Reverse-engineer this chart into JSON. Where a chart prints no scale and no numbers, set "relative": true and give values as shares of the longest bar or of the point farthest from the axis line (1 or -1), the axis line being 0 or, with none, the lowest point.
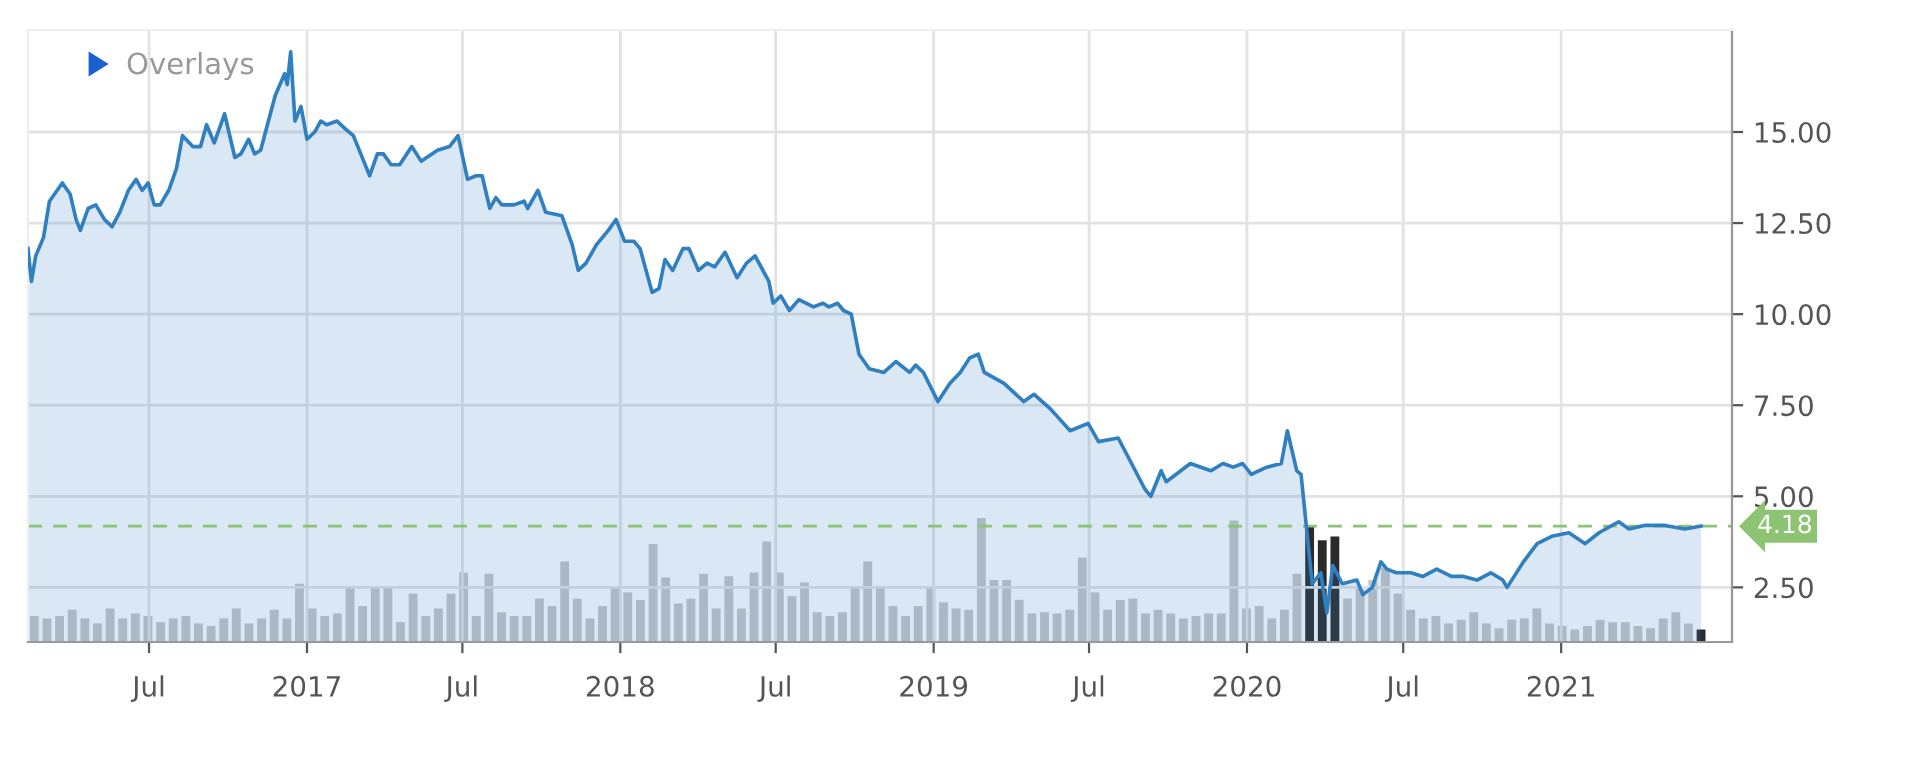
{
  "chart_data": [
    {
      "type": "area",
      "xlim": [
        "2016-02-11",
        "2021-07-19"
      ],
      "ylim": [
        1.0,
        17.8
      ],
      "xticks": [
        {
          "value": "2016-07-01",
          "label": "Jul"
        },
        {
          "value": "2017-01-01",
          "label": "2017"
        },
        {
          "value": "2017-07-01",
          "label": "Jul"
        },
        {
          "value": "2018-01-01",
          "label": "2018"
        },
        {
          "value": "2018-07-01",
          "label": "Jul"
        },
        {
          "value": "2019-01-01",
          "label": "2019"
        },
        {
          "value": "2019-07-01",
          "label": "Jul"
        },
        {
          "value": "2020-01-01",
          "label": "2020"
        },
        {
          "value": "2020-07-01",
          "label": "Jul"
        },
        {
          "value": "2021-01-01",
          "label": "2021"
        }
      ],
      "yticks": [
        {
          "value": 2.5,
          "label": "2.50"
        },
        {
          "value": 5,
          "label": "5.00"
        },
        {
          "value": 7.5,
          "label": "7.50"
        },
        {
          "value": 10,
          "label": "10.00"
        },
        {
          "value": 12.5,
          "label": "12.50"
        },
        {
          "value": 15,
          "label": "15.00"
        }
      ],
      "grid": true,
      "annotations": [
        "Overlays"
      ],
      "ref_lines": [
        {
          "axis": "y",
          "value": 4.18,
          "label": "4.18",
          "color": "#8cc474",
          "line_style": "dashed"
        }
      ],
      "series": [
        {
          "color": "#2f7fc1",
          "x": [
            "2016-02-11",
            "2016-02-15",
            "2016-02-20",
            "2016-02-29",
            "2016-03-07",
            "2016-03-22",
            "2016-03-31",
            "2016-04-07",
            "2016-04-12",
            "2016-04-21",
            "2016-04-30",
            "2016-05-10",
            "2016-05-19",
            "2016-05-28",
            "2016-06-07",
            "2016-06-16",
            "2016-06-23",
            "2016-06-30",
            "2016-07-07",
            "2016-07-14",
            "2016-07-24",
            "2016-08-02",
            "2016-08-09",
            "2016-08-21",
            "2016-08-30",
            "2016-09-06",
            "2016-09-15",
            "2016-09-27",
            "2016-10-09",
            "2016-10-16",
            "2016-10-25",
            "2016-11-01",
            "2016-11-08",
            "2016-11-25",
            "2016-12-06",
            "2016-12-09",
            "2016-12-13",
            "2016-12-18",
            "2016-12-25",
            "2017-01-01",
            "2017-01-10",
            "2017-01-17",
            "2017-01-24",
            "2017-02-05",
            "2017-02-14",
            "2017-02-24",
            "2017-03-15",
            "2017-03-24",
            "2017-03-31",
            "2017-04-09",
            "2017-04-19",
            "2017-05-03",
            "2017-05-14",
            "2017-06-02",
            "2017-06-16",
            "2017-06-26",
            "2017-07-07",
            "2017-07-17",
            "2017-07-24",
            "2017-08-02",
            "2017-08-09",
            "2017-08-16",
            "2017-08-30",
            "2017-09-11",
            "2017-09-15",
            "2017-09-27",
            "2017-10-06",
            "2017-10-25",
            "2017-11-06",
            "2017-11-13",
            "2017-11-22",
            "2017-12-04",
            "2017-12-18",
            "2017-12-27",
            "2018-01-06",
            "2018-01-17",
            "2018-01-24",
            "2018-02-07",
            "2018-02-15",
            "2018-02-22",
            "2018-03-03",
            "2018-03-15",
            "2018-03-22",
            "2018-04-02",
            "2018-04-12",
            "2018-04-21",
            "2018-05-03",
            "2018-05-17",
            "2018-05-28",
            "2018-06-07",
            "2018-06-23",
            "2018-06-28",
            "2018-07-07",
            "2018-07-17",
            "2018-07-28",
            "2018-08-14",
            "2018-08-25",
            "2018-09-01",
            "2018-09-11",
            "2018-09-18",
            "2018-09-27",
            "2018-10-06",
            "2018-10-18",
            "2018-11-04",
            "2018-11-18",
            "2018-12-04",
            "2018-12-11",
            "2018-12-20",
            "2019-01-06",
            "2019-01-20",
            "2019-02-01",
            "2019-02-12",
            "2019-02-22",
            "2019-03-01",
            "2019-03-24",
            "2019-04-16",
            "2019-04-28",
            "2019-05-17",
            "2019-06-09",
            "2019-06-30",
            "2019-07-12",
            "2019-08-04",
            "2019-09-04",
            "2019-09-11",
            "2019-09-23",
            "2019-09-29",
            "2019-10-27",
            "2019-11-20",
            "2019-12-04",
            "2019-12-16",
            "2019-12-27",
            "2020-01-06",
            "2020-01-24",
            "2020-02-10",
            "2020-02-17",
            "2020-02-28",
            "2020-03-04",
            "2020-03-17",
            "2020-03-27",
            "2020-04-03",
            "2020-04-10",
            "2020-04-21",
            "2020-05-08",
            "2020-05-15",
            "2020-05-26",
            "2020-06-05",
            "2020-06-12",
            "2020-06-23",
            "2020-07-10",
            "2020-07-24",
            "2020-08-09",
            "2020-08-26",
            "2020-09-09",
            "2020-09-25",
            "2020-10-11",
            "2020-10-25",
            "2020-10-30",
            "2020-11-18",
            "2020-12-04",
            "2020-12-21",
            "2021-01-10",
            "2021-01-29",
            "2021-02-14",
            "2021-03-09",
            "2021-03-21",
            "2021-04-08",
            "2021-05-02",
            "2021-05-25",
            "2021-06-13"
          ],
          "values": [
            11.8,
            10.9,
            11.6,
            12.1,
            13.1,
            13.6,
            13.3,
            12.6,
            12.3,
            12.9,
            13.0,
            12.6,
            12.4,
            12.8,
            13.4,
            13.7,
            13.4,
            13.6,
            13.0,
            13.0,
            13.4,
            14.0,
            14.9,
            14.6,
            14.6,
            15.2,
            14.7,
            15.5,
            14.3,
            14.4,
            14.8,
            14.4,
            14.5,
            16.0,
            16.6,
            16.3,
            17.2,
            15.3,
            15.7,
            14.8,
            15.0,
            15.3,
            15.2,
            15.3,
            15.1,
            14.9,
            13.8,
            14.4,
            14.4,
            14.1,
            14.1,
            14.6,
            14.2,
            14.5,
            14.6,
            14.9,
            13.7,
            13.8,
            13.8,
            12.9,
            13.2,
            13.0,
            13.0,
            13.1,
            12.9,
            13.4,
            12.8,
            12.7,
            11.9,
            11.2,
            11.4,
            11.9,
            12.3,
            12.6,
            12.0,
            12.0,
            11.8,
            10.6,
            10.7,
            11.5,
            11.2,
            11.8,
            11.8,
            11.2,
            11.4,
            11.3,
            11.7,
            11.0,
            11.4,
            11.6,
            10.9,
            10.3,
            10.5,
            10.1,
            10.4,
            10.2,
            10.3,
            10.2,
            10.3,
            10.1,
            10.0,
            8.9,
            8.5,
            8.4,
            8.7,
            8.4,
            8.6,
            8.4,
            7.6,
            8.1,
            8.4,
            8.8,
            8.9,
            8.4,
            8.1,
            7.6,
            7.8,
            7.4,
            6.8,
            7.0,
            6.5,
            6.6,
            5.2,
            5.0,
            5.7,
            5.4,
            5.9,
            5.7,
            5.9,
            5.8,
            5.9,
            5.6,
            5.8,
            5.9,
            6.8,
            5.7,
            5.6,
            2.6,
            2.9,
            1.8,
            3.1,
            2.6,
            2.7,
            2.3,
            2.5,
            3.2,
            3.0,
            2.9,
            2.9,
            2.8,
            3.0,
            2.8,
            2.8,
            2.7,
            2.9,
            2.7,
            2.5,
            3.2,
            3.7,
            3.9,
            4.0,
            3.7,
            4.0,
            4.3,
            4.1,
            4.2,
            4.2,
            4.1,
            4.18
          ]
        }
      ]
    },
    {
      "type": "bar",
      "relative": true,
      "categories": [
        null,
        null,
        null,
        null,
        null,
        null,
        null,
        null,
        null,
        null,
        null,
        null,
        null,
        null,
        null,
        null,
        null,
        null,
        null,
        null,
        null,
        null,
        null,
        null,
        null,
        null,
        null,
        null,
        null,
        null,
        null,
        null,
        null,
        null,
        null,
        null,
        null,
        null,
        null,
        null,
        null,
        null,
        null,
        null,
        null,
        null,
        null,
        null,
        null,
        null,
        null,
        null,
        null,
        null,
        null,
        null,
        null,
        null,
        null,
        null,
        null,
        null,
        null,
        null,
        null,
        null,
        null,
        null,
        null,
        null,
        null,
        null,
        null,
        null,
        null,
        null,
        null,
        null,
        null,
        null,
        null,
        null,
        null,
        null,
        null,
        null,
        null,
        null,
        null,
        null,
        null,
        null,
        null,
        null,
        null,
        null,
        null,
        null,
        null,
        null,
        null,
        null,
        null,
        null,
        null,
        null,
        null,
        null,
        null,
        null,
        null,
        null,
        null,
        null,
        null,
        null,
        null,
        null,
        null,
        null,
        null,
        null,
        null,
        null,
        null,
        null,
        null,
        null,
        null,
        null,
        null,
        null,
        null
      ],
      "values": [
        0.21,
        0.19,
        0.21,
        0.26,
        0.19,
        0.15,
        0.27,
        0.19,
        0.23,
        0.21,
        0.16,
        0.19,
        0.21,
        0.15,
        0.13,
        0.19,
        0.27,
        0.15,
        0.19,
        0.26,
        0.19,
        0.47,
        0.27,
        0.21,
        0.23,
        0.44,
        0.29,
        0.44,
        0.45,
        0.16,
        0.39,
        0.21,
        0.27,
        0.39,
        0.56,
        0.21,
        0.55,
        0.24,
        0.21,
        0.21,
        0.35,
        0.29,
        0.65,
        0.35,
        0.19,
        0.29,
        0.44,
        0.4,
        0.34,
        0.79,
        0.52,
        0.31,
        0.35,
        0.55,
        0.27,
        0.53,
        0.27,
        0.56,
        0.81,
        0.56,
        0.37,
        0.48,
        0.24,
        0.21,
        0.24,
        0.44,
        0.65,
        0.44,
        0.29,
        0.21,
        0.29,
        0.44,
        0.32,
        0.27,
        0.26,
        1,
        0.5,
        0.5,
        0.34,
        0.23,
        0.24,
        0.23,
        0.26,
        0.68,
        0.4,
        0.26,
        0.34,
        0.35,
        0.23,
        0.26,
        0.23,
        0.19,
        0.21,
        0.23,
        0.23,
        0.98,
        0.27,
        0.29,
        0.19,
        0.26,
        0.55,
        0.94,
        0.82,
        0.85,
        0.35,
        0.44,
        0.5,
        0.6,
        0.39,
        0.26,
        0.19,
        0.21,
        0.15,
        0.18,
        0.24,
        0.15,
        0.11,
        0.18,
        0.19,
        0.27,
        0.15,
        0.13,
        0.1,
        0.13,
        0.18,
        0.16,
        0.16,
        0.13,
        0.11,
        0.19,
        0.24,
        0.15,
        0.1
      ],
      "colors": [
        "#c6c6c6",
        "#c6c6c6",
        "#c6c6c6",
        "#c6c6c6",
        "#c6c6c6",
        "#c6c6c6",
        "#c6c6c6",
        "#c6c6c6",
        "#c6c6c6",
        "#c6c6c6",
        "#c6c6c6",
        "#c6c6c6",
        "#c6c6c6",
        "#c6c6c6",
        "#c6c6c6",
        "#c6c6c6",
        "#c6c6c6",
        "#c6c6c6",
        "#c6c6c6",
        "#c6c6c6",
        "#c6c6c6",
        "#c6c6c6",
        "#c6c6c6",
        "#c6c6c6",
        "#c6c6c6",
        "#c6c6c6",
        "#c6c6c6",
        "#c6c6c6",
        "#c6c6c6",
        "#c6c6c6",
        "#c6c6c6",
        "#c6c6c6",
        "#c6c6c6",
        "#c6c6c6",
        "#c6c6c6",
        "#c6c6c6",
        "#c6c6c6",
        "#c6c6c6",
        "#c6c6c6",
        "#c6c6c6",
        "#c6c6c6",
        "#c6c6c6",
        "#c6c6c6",
        "#c6c6c6",
        "#c6c6c6",
        "#c6c6c6",
        "#c6c6c6",
        "#c6c6c6",
        "#c6c6c6",
        "#c6c6c6",
        "#c6c6c6",
        "#c6c6c6",
        "#c6c6c6",
        "#c6c6c6",
        "#c6c6c6",
        "#c6c6c6",
        "#c6c6c6",
        "#c6c6c6",
        "#c6c6c6",
        "#c6c6c6",
        "#c6c6c6",
        "#c6c6c6",
        "#c6c6c6",
        "#c6c6c6",
        "#c6c6c6",
        "#c6c6c6",
        "#c6c6c6",
        "#c6c6c6",
        "#c6c6c6",
        "#c6c6c6",
        "#c6c6c6",
        "#c6c6c6",
        "#c6c6c6",
        "#c6c6c6",
        "#c6c6c6",
        "#c6c6c6",
        "#c6c6c6",
        "#c6c6c6",
        "#c6c6c6",
        "#c6c6c6",
        "#c6c6c6",
        "#c6c6c6",
        "#c6c6c6",
        "#c6c6c6",
        "#c6c6c6",
        "#c6c6c6",
        "#c6c6c6",
        "#c6c6c6",
        "#c6c6c6",
        "#c6c6c6",
        "#c6c6c6",
        "#c6c6c6",
        "#c6c6c6",
        "#c6c6c6",
        "#c6c6c6",
        "#c6c6c6",
        "#c6c6c6",
        "#c6c6c6",
        "#c6c6c6",
        "#c6c6c6",
        "#c6c6c6",
        "#2b2b2b",
        "#2b2b2b",
        "#2b2b2b",
        "#c6c6c6",
        "#c6c6c6",
        "#c6c6c6",
        "#c6c6c6",
        "#c6c6c6",
        "#c6c6c6",
        "#c6c6c6",
        "#c6c6c6",
        "#c6c6c6",
        "#c6c6c6",
        "#c6c6c6",
        "#c6c6c6",
        "#c6c6c6",
        "#c6c6c6",
        "#c6c6c6",
        "#c6c6c6",
        "#c6c6c6",
        "#c6c6c6",
        "#c6c6c6",
        "#c6c6c6",
        "#c6c6c6",
        "#c6c6c6",
        "#c6c6c6",
        "#c6c6c6",
        "#c6c6c6",
        "#c6c6c6",
        "#c6c6c6",
        "#c6c6c6",
        "#2b2b2b"
      ]
    }
  ]
}
